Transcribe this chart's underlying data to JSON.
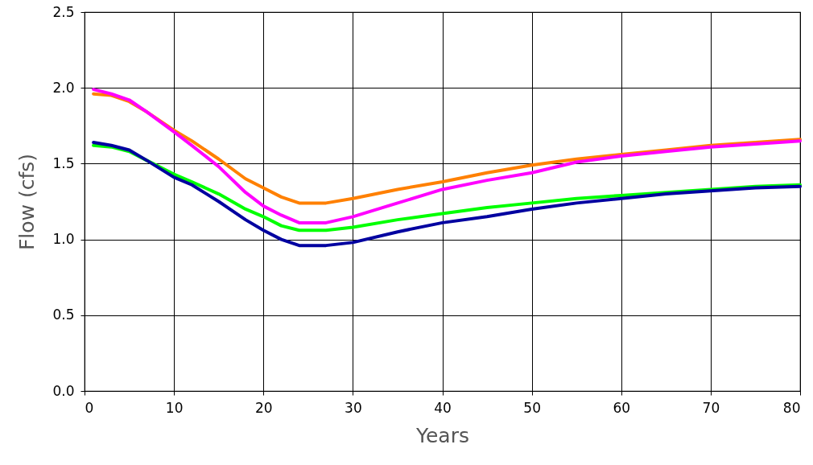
{
  "chart_data": {
    "type": "line",
    "xlabel": "Years",
    "ylabel": "Flow (cfs)",
    "xlim": [
      0,
      80
    ],
    "xticks": [
      0,
      10,
      20,
      30,
      40,
      50,
      60,
      70,
      80
    ],
    "ylim": [
      0,
      2.5
    ],
    "yticks": [
      {
        "value": 0,
        "label": "0.0"
      },
      0.5,
      {
        "value": 1,
        "label": "1.0"
      },
      1.5,
      {
        "value": 2,
        "label": "2.0"
      },
      2.5
    ],
    "grid": true,
    "marker": "none",
    "line_style": "solid",
    "x": [
      1,
      3,
      5,
      7,
      10,
      12,
      15,
      18,
      20,
      22,
      24,
      27,
      30,
      35,
      40,
      45,
      50,
      55,
      60,
      65,
      70,
      75,
      80
    ],
    "series": [
      {
        "color": "#ff8000",
        "values": [
          1.96,
          1.95,
          1.91,
          1.84,
          1.72,
          1.65,
          1.53,
          1.4,
          1.34,
          1.28,
          1.24,
          1.24,
          1.27,
          1.33,
          1.38,
          1.44,
          1.49,
          1.53,
          1.56,
          1.59,
          1.62,
          1.64,
          1.66
        ]
      },
      {
        "color": "#ff00ff",
        "values": [
          1.99,
          1.96,
          1.92,
          1.84,
          1.71,
          1.62,
          1.48,
          1.31,
          1.22,
          1.16,
          1.11,
          1.11,
          1.15,
          1.24,
          1.33,
          1.39,
          1.44,
          1.51,
          1.55,
          1.58,
          1.61,
          1.63,
          1.65
        ]
      },
      {
        "color": "#00ff00",
        "values": [
          1.62,
          1.61,
          1.58,
          1.52,
          1.43,
          1.38,
          1.3,
          1.2,
          1.15,
          1.09,
          1.06,
          1.06,
          1.08,
          1.13,
          1.17,
          1.21,
          1.24,
          1.27,
          1.29,
          1.31,
          1.33,
          1.35,
          1.36
        ]
      },
      {
        "color": "#0000a0",
        "values": [
          1.64,
          1.62,
          1.59,
          1.52,
          1.41,
          1.36,
          1.25,
          1.13,
          1.06,
          1.0,
          0.96,
          0.96,
          0.98,
          1.05,
          1.11,
          1.15,
          1.2,
          1.24,
          1.27,
          1.3,
          1.32,
          1.34,
          1.35
        ]
      }
    ]
  }
}
